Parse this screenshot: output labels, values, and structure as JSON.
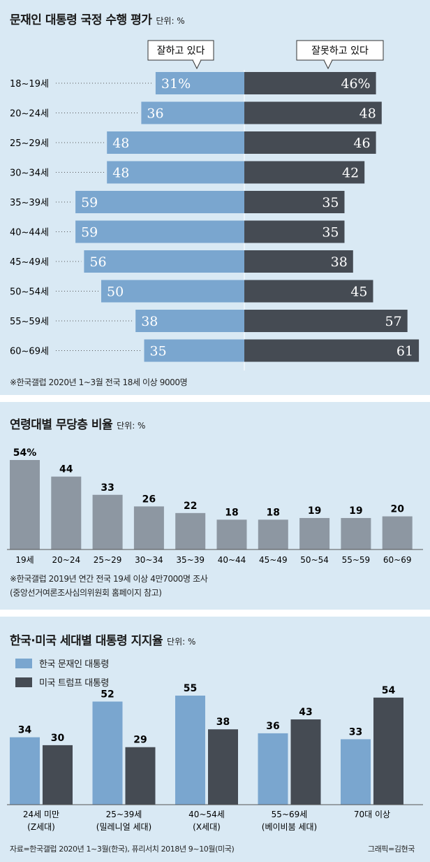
{
  "colors": {
    "blue": "#7aa6cf",
    "dark": "#454b53",
    "gray": "#8d97a2",
    "panel": "#d9e9f4"
  },
  "approval": {
    "title": "문재인 대통령 국정 수행 평가",
    "unit": "단위: %",
    "label_positive": "잘하고 있다",
    "label_negative": "잘못하고 있다",
    "note": "※한국갤럽 2020년 1~3월 전국 18세 이상 9000명"
  },
  "swing": {
    "title": "연령대별 무당층 비율",
    "unit": "단위: %",
    "note1": "※한국갤럽 2019년 연간 전국 19세 이상 4만7000명 조사",
    "note2": "(중앙선거여론조사심의위원회 홈페이지 참고)"
  },
  "intl": {
    "title": "한국·미국 세대별 대통령 지지율",
    "unit": "단위: %",
    "legend1": "한국 문재인 대통령",
    "legend2": "미국 트럼프 대통령",
    "footer_source": "자료=한국갤럽 2020년 1~3월(한국), 퓨리서치 2018년 9~10월(미국)",
    "footer_credit": "그래픽=김현국"
  },
  "chart_data": [
    {
      "type": "bar",
      "orientation": "diverging-horizontal",
      "title": "문재인 대통령 국정 수행 평가",
      "categories": [
        "18~19세",
        "20~24세",
        "25~29세",
        "30~34세",
        "35~39세",
        "40~44세",
        "45~49세",
        "50~54세",
        "55~59세",
        "60~69세"
      ],
      "series": [
        {
          "name": "잘하고 있다",
          "values": [
            31,
            36,
            48,
            48,
            59,
            59,
            56,
            50,
            38,
            35
          ]
        },
        {
          "name": "잘못하고 있다",
          "values": [
            46,
            48,
            46,
            42,
            35,
            35,
            38,
            45,
            57,
            61
          ]
        }
      ],
      "first_row_suffix": "%"
    },
    {
      "type": "bar",
      "title": "연령대별 무당층 비율",
      "categories": [
        "19세",
        "20~24",
        "25~29",
        "30~34",
        "35~39",
        "40~44",
        "45~49",
        "50~54",
        "55~59",
        "60~69"
      ],
      "values": [
        54,
        44,
        33,
        26,
        22,
        18,
        18,
        19,
        19,
        20
      ],
      "value_labels": [
        "54%",
        "44",
        "33",
        "26",
        "22",
        "18",
        "18",
        "19",
        "19",
        "20"
      ],
      "ylim": [
        0,
        54
      ]
    },
    {
      "type": "bar",
      "title": "한국·미국 세대별 대통령 지지율",
      "categories": [
        "24세 미만",
        "25~39세",
        "40~54세",
        "55~69세",
        "70대 이상"
      ],
      "subcategories": [
        "(Z세대)",
        "(밀레니얼 세대)",
        "(X세대)",
        "(베이비붐 세대)",
        ""
      ],
      "series": [
        {
          "name": "한국 문재인 대통령",
          "values": [
            34,
            52,
            55,
            36,
            33
          ]
        },
        {
          "name": "미국 트럼프 대통령",
          "values": [
            30,
            29,
            38,
            43,
            54
          ]
        }
      ],
      "ylim": [
        0,
        55
      ]
    }
  ]
}
